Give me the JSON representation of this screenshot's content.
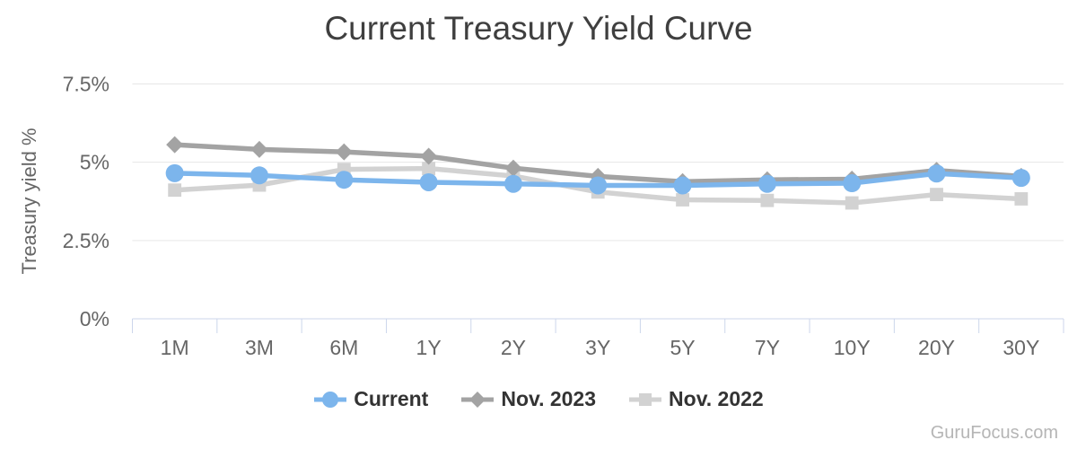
{
  "chart_data": {
    "type": "line",
    "title": "Current Treasury Yield Curve",
    "categories": [
      "1M",
      "3M",
      "6M",
      "1Y",
      "2Y",
      "3Y",
      "5Y",
      "7Y",
      "10Y",
      "20Y",
      "30Y"
    ],
    "series": [
      {
        "name": "Current",
        "marker": "circle",
        "color": "#7cb5ec",
        "values": [
          4.65,
          4.58,
          4.44,
          4.36,
          4.31,
          4.26,
          4.26,
          4.31,
          4.33,
          4.64,
          4.5
        ]
      },
      {
        "name": "Nov. 2023",
        "marker": "diamond",
        "color": "#a3a3a3",
        "values": [
          5.56,
          5.41,
          5.33,
          5.19,
          4.81,
          4.55,
          4.38,
          4.44,
          4.46,
          4.74,
          4.55
        ]
      },
      {
        "name": "Nov. 2022",
        "marker": "square",
        "color": "#d2d2d2",
        "values": [
          4.11,
          4.27,
          4.77,
          4.8,
          4.56,
          4.05,
          3.8,
          3.78,
          3.7,
          3.97,
          3.83
        ]
      }
    ],
    "xlabel": "",
    "ylabel": "Treasury yield %",
    "yticks": [
      0,
      2.5,
      5,
      7.5
    ],
    "ytick_labels": [
      "0%",
      "2.5%",
      "5%",
      "7.5%"
    ],
    "ylim": [
      0,
      7.5
    ],
    "grid": true,
    "legend_position": "bottom"
  },
  "watermark": "GuruFocus.com",
  "style": {
    "grid_color": "#e6e6e6",
    "axis_line_color": "#ccd6eb",
    "axis_label_color": "#666666",
    "legend_text_color": "#333333",
    "title_color": "#3f3f3f",
    "watermark_color": "#b5b5b5",
    "series_line_width": 5.5
  }
}
